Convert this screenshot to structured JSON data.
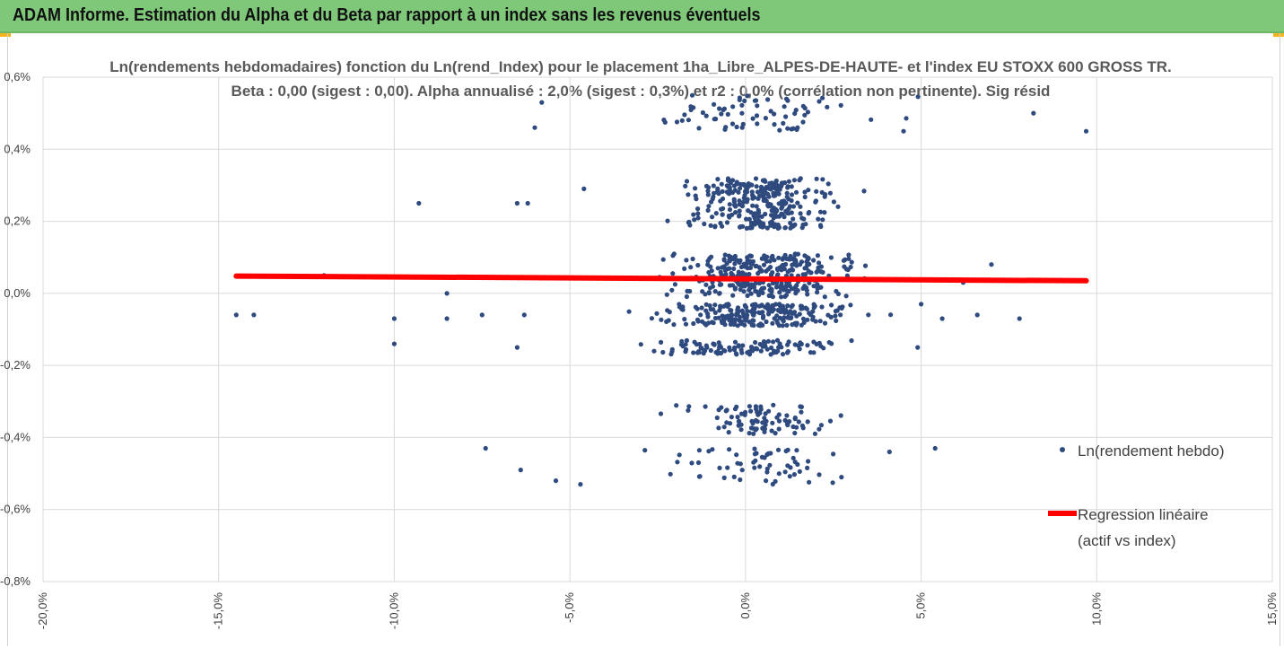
{
  "header": {
    "title": "ADAM Informe. Estimation du Alpha et du Beta par rapport à un index sans les revenus éventuels",
    "bar_color": "#7fc87a"
  },
  "chart_data": {
    "type": "scatter",
    "title_line1": "Ln(rendements hebdomadaires) fonction du Ln(rend_Index) pour le placement 1ha_Libre_ALPES-DE-HAUTE- et l'index EU STOXX 600 GROSS TR.",
    "title_line2": "Beta : 0,00 (sigest : 0,00). Alpha annualisé : 2,0% (sigest : 0,3%) et r2 : 0,0% (corrélation non pertinente). Sig résid",
    "xlabel": "",
    "ylabel": "",
    "xlim": [
      -0.2,
      0.15
    ],
    "ylim": [
      -0.008,
      0.006
    ],
    "x_ticks": [
      "-20,0%",
      "-15,0%",
      "-10,0%",
      "-5,0%",
      "0,0%",
      "5,0%",
      "10,0%",
      "15,0%"
    ],
    "y_ticks": [
      "0,6%",
      "0,4%",
      "0,2%",
      "0,0%",
      "-0,2%",
      "-0,4%",
      "-0,6%",
      "-0,8%"
    ],
    "grid": true,
    "legend_position": "right",
    "series": [
      {
        "name": "Ln(rendement hebdo)",
        "color": "#2e4a7e",
        "marker": "circle",
        "clusters": [
          {
            "y": 0.005,
            "y_spread": 0.0005,
            "x_mean": 0.002,
            "x_sd": 0.032,
            "count": 70
          },
          {
            "y": 0.0025,
            "y_spread": 0.0007,
            "x_mean": 0.004,
            "x_sd": 0.018,
            "count": 300
          },
          {
            "y": 0.0005,
            "y_spread": 0.0006,
            "x_mean": 0.005,
            "x_sd": 0.022,
            "count": 320
          },
          {
            "y": -0.0006,
            "y_spread": 0.0003,
            "x_mean": 0.004,
            "x_sd": 0.026,
            "count": 230
          },
          {
            "y": -0.0015,
            "y_spread": 0.0002,
            "x_mean": 0.002,
            "x_sd": 0.022,
            "count": 110
          },
          {
            "y": -0.0035,
            "y_spread": 0.0004,
            "x_mean": 0.003,
            "x_sd": 0.018,
            "count": 90
          },
          {
            "y": -0.0048,
            "y_spread": 0.0005,
            "x_mean": 0.003,
            "x_sd": 0.022,
            "count": 60
          }
        ],
        "outliers": [
          {
            "x": -0.145,
            "y": -0.0006
          },
          {
            "x": -0.14,
            "y": -0.0006
          },
          {
            "x": -0.12,
            "y": 0.0005
          },
          {
            "x": -0.1,
            "y": -0.0007
          },
          {
            "x": -0.1,
            "y": -0.0014
          },
          {
            "x": -0.093,
            "y": 0.0025
          },
          {
            "x": -0.085,
            "y": -0.0007
          },
          {
            "x": -0.085,
            "y": 0.0
          },
          {
            "x": -0.075,
            "y": -0.0006
          },
          {
            "x": -0.074,
            "y": -0.0043
          },
          {
            "x": -0.065,
            "y": 0.0025
          },
          {
            "x": -0.065,
            "y": -0.0015
          },
          {
            "x": -0.064,
            "y": -0.0049
          },
          {
            "x": -0.063,
            "y": -0.0006
          },
          {
            "x": -0.062,
            "y": 0.0025
          },
          {
            "x": -0.06,
            "y": 0.0046
          },
          {
            "x": -0.058,
            "y": 0.0053
          },
          {
            "x": -0.054,
            "y": -0.0052
          },
          {
            "x": -0.047,
            "y": -0.0053
          },
          {
            "x": -0.046,
            "y": 0.0029
          },
          {
            "x": 0.041,
            "y": -0.0044
          },
          {
            "x": 0.045,
            "y": 0.0045
          },
          {
            "x": 0.049,
            "y": -0.0015
          },
          {
            "x": 0.05,
            "y": -0.0003
          },
          {
            "x": 0.054,
            "y": -0.0043
          },
          {
            "x": 0.056,
            "y": -0.0007
          },
          {
            "x": 0.062,
            "y": 0.0003
          },
          {
            "x": 0.066,
            "y": -0.0006
          },
          {
            "x": 0.07,
            "y": 0.0008
          },
          {
            "x": 0.078,
            "y": -0.0007
          },
          {
            "x": 0.082,
            "y": 0.005
          },
          {
            "x": 0.097,
            "y": 0.0045
          }
        ]
      },
      {
        "name": "Regression linéaire (actif vs index)",
        "legend_lines": [
          "Regression linéaire",
          "(actif vs index)"
        ],
        "color": "#ff0000",
        "type": "line",
        "x": [
          -0.145,
          0.097
        ],
        "y": [
          0.00048,
          0.00035
        ]
      }
    ]
  }
}
